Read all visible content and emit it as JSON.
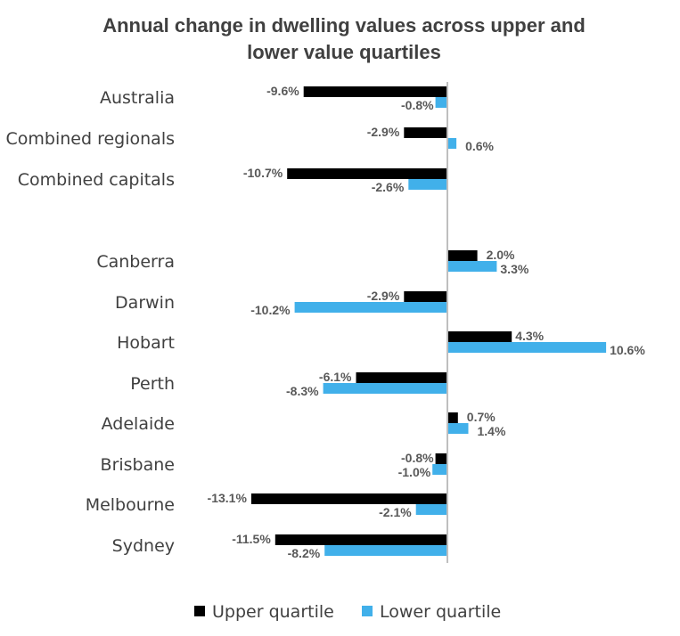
{
  "chart_data": {
    "type": "bar",
    "orientation": "horizontal",
    "title": "Annual change in dwelling values across upper and lower value quartiles",
    "title_lines": [
      "Annual change in dwelling values across upper and",
      "lower value quartiles"
    ],
    "categories": [
      "Australia",
      "Combined regionals",
      "Combined capitals",
      "Canberra",
      "Darwin",
      "Hobart",
      "Perth",
      "Adelaide",
      "Brisbane",
      "Melbourne",
      "Sydney"
    ],
    "series": [
      {
        "name": "Upper quartile",
        "color": "#000000",
        "values": [
          -9.6,
          -2.9,
          -10.7,
          2.0,
          -2.9,
          4.3,
          -6.1,
          0.7,
          -0.8,
          -13.1,
          -11.5
        ],
        "labels": [
          "-9.6%",
          "-2.9%",
          "-10.7%",
          "2.0%",
          "-2.9%",
          "4.3%",
          "-6.1%",
          "0.7%",
          "-0.8%",
          "-13.1%",
          "-11.5%"
        ]
      },
      {
        "name": "Lower quartile",
        "color": "#41b0ea",
        "values": [
          -0.8,
          0.6,
          -2.6,
          3.3,
          -10.2,
          10.6,
          -8.3,
          1.4,
          -1.0,
          -2.1,
          -8.2
        ],
        "labels": [
          "-0.8%",
          "0.6%",
          "-2.6%",
          "3.3%",
          "-10.2%",
          "10.6%",
          "-8.3%",
          "1.4%",
          "-1.0%",
          "-2.1%",
          "-8.2%"
        ]
      }
    ],
    "xlim": [
      -13.1,
      10.6
    ],
    "axis_color": "#bfbfbf",
    "grid": false,
    "legend": "bottom"
  }
}
